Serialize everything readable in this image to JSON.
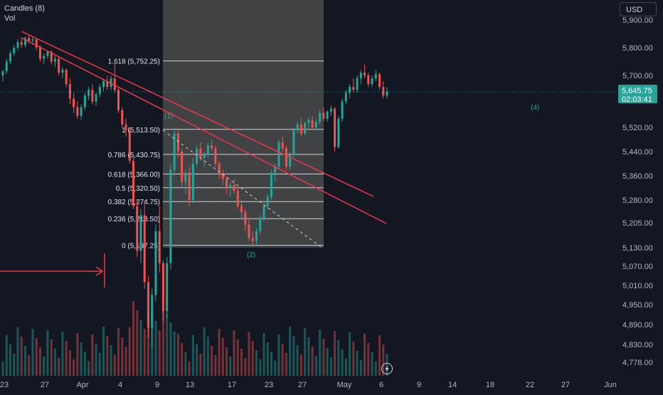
{
  "legend": {
    "series": "Candles (8)",
    "volume": "Vol"
  },
  "currency": "USD",
  "colors": {
    "up": "#26a69a",
    "down": "#ef5350",
    "trendline": "#f23645",
    "fib": "#d1d4dc",
    "wave": "#26a69a",
    "price_badge": "#26a69a"
  },
  "price_axis": {
    "ticks": [
      "5,900.00",
      "5,800.00",
      "5,700.00",
      "5,520.00",
      "5,440.00",
      "5,360.00",
      "5,280.00",
      "5,205.00",
      "5,130.00",
      "5,070.00",
      "5,010.00",
      "4,950.00",
      "4,890.00",
      "4,830.00",
      "4,778.00"
    ]
  },
  "time_axis": {
    "ticks": [
      "23",
      "27",
      "Apr",
      "4",
      "9",
      "13",
      "17",
      "23",
      "27",
      "May",
      "6",
      "9",
      "14",
      "18",
      "22",
      "27",
      "Jun"
    ]
  },
  "current_price": {
    "value": "5,645.75",
    "countdown": "02:03:41"
  },
  "fib_levels": [
    {
      "ratio": "1.618",
      "price": 5752.25,
      "label": "1.618 (5,752.25)"
    },
    {
      "ratio": "1",
      "price": 5513.5,
      "label": "1 (5,513.50)"
    },
    {
      "ratio": "0.786",
      "price": 5430.75,
      "label": "0.786 (5,430.75)"
    },
    {
      "ratio": "0.618",
      "price": 5366.0,
      "label": "0.618 (5,366.00)"
    },
    {
      "ratio": "0.5",
      "price": 5320.5,
      "label": "0.5 (5,320.50)"
    },
    {
      "ratio": "0.382",
      "price": 5274.75,
      "label": "0.382 (5,274.75)"
    },
    {
      "ratio": "0.236",
      "price": 5218.5,
      "label": "0.236 (5,218.50)"
    },
    {
      "ratio": "0",
      "price": 5137.25,
      "label": "0 (5,137.25)"
    }
  ],
  "wave_labels": [
    "(1)",
    "(2)",
    "(4)"
  ],
  "chart_data": {
    "type": "candlestick",
    "y_range": [
      4755,
      5925
    ],
    "y_label_ticks": [
      5900,
      5800,
      5700,
      5520,
      5440,
      5360,
      5280,
      5205,
      5130,
      5070,
      5010,
      4950,
      4890,
      4830,
      4778
    ],
    "candles_approx": [
      [
        5700,
        5720,
        5680,
        5715
      ],
      [
        5715,
        5760,
        5705,
        5750
      ],
      [
        5750,
        5790,
        5740,
        5780
      ],
      [
        5780,
        5810,
        5770,
        5800
      ],
      [
        5800,
        5830,
        5790,
        5820
      ],
      [
        5820,
        5835,
        5800,
        5810
      ],
      [
        5810,
        5840,
        5800,
        5835
      ],
      [
        5835,
        5845,
        5815,
        5825
      ],
      [
        5825,
        5840,
        5810,
        5830
      ],
      [
        5830,
        5835,
        5790,
        5800
      ],
      [
        5800,
        5810,
        5750,
        5760
      ],
      [
        5760,
        5780,
        5740,
        5770
      ],
      [
        5770,
        5790,
        5760,
        5785
      ],
      [
        5785,
        5790,
        5740,
        5750
      ],
      [
        5750,
        5770,
        5730,
        5760
      ],
      [
        5760,
        5765,
        5700,
        5710
      ],
      [
        5710,
        5730,
        5690,
        5720
      ],
      [
        5720,
        5725,
        5660,
        5670
      ],
      [
        5670,
        5690,
        5600,
        5620
      ],
      [
        5620,
        5640,
        5570,
        5590
      ],
      [
        5590,
        5610,
        5550,
        5560
      ],
      [
        5560,
        5600,
        5545,
        5590
      ],
      [
        5590,
        5640,
        5580,
        5630
      ],
      [
        5630,
        5660,
        5615,
        5650
      ],
      [
        5650,
        5670,
        5600,
        5610
      ],
      [
        5610,
        5640,
        5595,
        5635
      ],
      [
        5635,
        5670,
        5625,
        5660
      ],
      [
        5660,
        5690,
        5645,
        5680
      ],
      [
        5680,
        5700,
        5650,
        5660
      ],
      [
        5660,
        5700,
        5650,
        5690
      ],
      [
        5690,
        5760,
        5640,
        5650
      ],
      [
        5650,
        5660,
        5570,
        5580
      ],
      [
        5580,
        5590,
        5520,
        5530
      ],
      [
        5530,
        5550,
        5490,
        5510
      ],
      [
        5510,
        5520,
        5400,
        5410
      ],
      [
        5410,
        5420,
        5250,
        5260
      ],
      [
        5260,
        5280,
        5100,
        5120
      ],
      [
        5120,
        5250,
        5080,
        5230
      ],
      [
        5230,
        5280,
        5000,
        5020
      ],
      [
        5020,
        5040,
        4850,
        4880
      ],
      [
        4880,
        5000,
        4820,
        4980
      ],
      [
        4980,
        5200,
        4960,
        5180
      ],
      [
        5180,
        5260,
        5050,
        5080
      ],
      [
        5080,
        5090,
        4900,
        4930
      ],
      [
        4930,
        5100,
        4910,
        5080
      ],
      [
        5080,
        5400,
        5060,
        5380
      ],
      [
        5380,
        5520,
        5360,
        5500
      ],
      [
        5500,
        5510,
        5420,
        5440
      ],
      [
        5440,
        5450,
        5320,
        5340
      ],
      [
        5340,
        5380,
        5300,
        5370
      ],
      [
        5370,
        5390,
        5260,
        5280
      ],
      [
        5280,
        5420,
        5270,
        5400
      ],
      [
        5400,
        5460,
        5390,
        5450
      ],
      [
        5450,
        5470,
        5410,
        5420
      ],
      [
        5420,
        5440,
        5390,
        5430
      ],
      [
        5430,
        5470,
        5420,
        5460
      ],
      [
        5460,
        5480,
        5440,
        5450
      ],
      [
        5450,
        5460,
        5390,
        5400
      ],
      [
        5400,
        5410,
        5350,
        5370
      ],
      [
        5370,
        5380,
        5330,
        5350
      ],
      [
        5350,
        5360,
        5300,
        5320
      ],
      [
        5320,
        5340,
        5290,
        5330
      ],
      [
        5330,
        5350,
        5300,
        5310
      ],
      [
        5310,
        5320,
        5250,
        5260
      ],
      [
        5260,
        5280,
        5220,
        5240
      ],
      [
        5240,
        5250,
        5180,
        5200
      ],
      [
        5200,
        5220,
        5150,
        5160
      ],
      [
        5160,
        5180,
        5135,
        5150
      ],
      [
        5150,
        5190,
        5140,
        5180
      ],
      [
        5180,
        5230,
        5170,
        5220
      ],
      [
        5220,
        5270,
        5210,
        5260
      ],
      [
        5260,
        5300,
        5250,
        5290
      ],
      [
        5290,
        5380,
        5280,
        5370
      ],
      [
        5370,
        5400,
        5340,
        5390
      ],
      [
        5390,
        5480,
        5380,
        5470
      ],
      [
        5470,
        5490,
        5440,
        5450
      ],
      [
        5450,
        5460,
        5380,
        5390
      ],
      [
        5390,
        5440,
        5380,
        5430
      ],
      [
        5430,
        5520,
        5420,
        5510
      ],
      [
        5510,
        5540,
        5500,
        5530
      ],
      [
        5530,
        5550,
        5490,
        5500
      ],
      [
        5500,
        5540,
        5495,
        5535
      ],
      [
        5535,
        5555,
        5520,
        5545
      ],
      [
        5545,
        5560,
        5510,
        5520
      ],
      [
        5520,
        5550,
        5510,
        5540
      ],
      [
        5540,
        5580,
        5530,
        5570
      ],
      [
        5570,
        5590,
        5540,
        5550
      ],
      [
        5550,
        5580,
        5540,
        5575
      ],
      [
        5575,
        5595,
        5560,
        5585
      ],
      [
        5585,
        5590,
        5440,
        5455
      ],
      [
        5455,
        5560,
        5450,
        5550
      ],
      [
        5550,
        5620,
        5540,
        5610
      ],
      [
        5610,
        5650,
        5600,
        5640
      ],
      [
        5640,
        5670,
        5620,
        5660
      ],
      [
        5660,
        5690,
        5640,
        5650
      ],
      [
        5650,
        5700,
        5640,
        5690
      ],
      [
        5690,
        5720,
        5670,
        5710
      ],
      [
        5710,
        5740,
        5690,
        5700
      ],
      [
        5700,
        5710,
        5660,
        5670
      ],
      [
        5670,
        5700,
        5660,
        5690
      ],
      [
        5690,
        5720,
        5680,
        5705
      ],
      [
        5705,
        5710,
        5650,
        5660
      ],
      [
        5660,
        5680,
        5620,
        5630
      ],
      [
        5630,
        5660,
        5620,
        5645
      ]
    ]
  }
}
